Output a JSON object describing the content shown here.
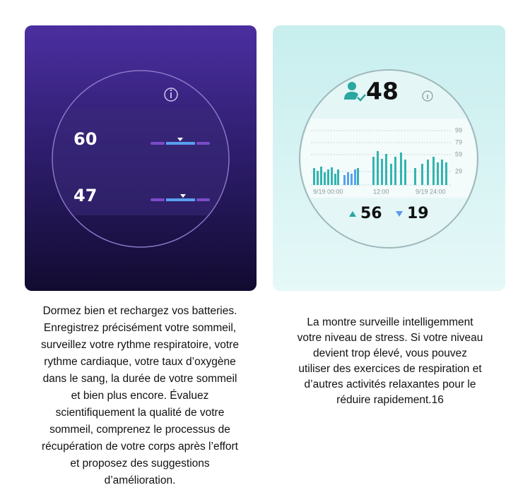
{
  "left_panel": {
    "readings": [
      "60",
      "47"
    ]
  },
  "right_panel": {
    "stress_level": "48",
    "y_axis_labels": [
      "99",
      "79",
      "59",
      "29"
    ],
    "time_labels": [
      "9/19 00:00",
      "12:00",
      "9/19 24:00"
    ],
    "max": "56",
    "min": "19"
  },
  "captions": {
    "left": [
      "Dormez bien et rechargez vos batteries.",
      "Enregistrez précisément votre sommeil,",
      "surveillez votre rythme respiratoire, votre",
      "rythme cardiaque, votre taux d’oxygène",
      "dans le sang, la durée de votre sommeil",
      "et bien plus encore. Évaluez",
      "scientifiquement la qualité de votre",
      "sommeil, comprenez le processus de",
      "récupération de votre corps après l’effort",
      "et proposez des suggestions",
      "d’amélioration."
    ],
    "right": [
      "La montre surveille intelligemment",
      "votre niveau de stress. Si votre niveau",
      "devient trop élevé, vous pouvez",
      "utiliser des exercices de respiration et",
      "d’autres activités relaxantes pour le",
      "réduire rapidement.16"
    ]
  }
}
